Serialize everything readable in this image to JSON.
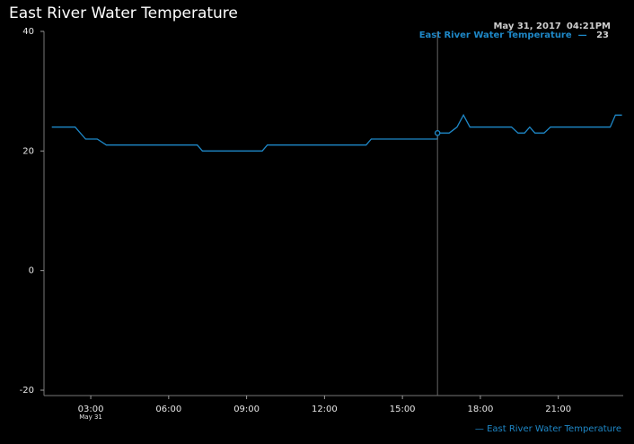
{
  "chart_data": {
    "type": "line",
    "title": "East River Water Temperature",
    "xlabel": "",
    "ylabel": "",
    "ylim": [
      -20,
      40
    ],
    "y_ticks": [
      -20,
      0,
      20,
      40
    ],
    "x_range_hours": [
      1.2,
      23.5
    ],
    "x_ticks": [
      {
        "hour": 3,
        "label": "03:00",
        "sublabel": "May 31"
      },
      {
        "hour": 6,
        "label": "06:00",
        "sublabel": ""
      },
      {
        "hour": 9,
        "label": "09:00",
        "sublabel": ""
      },
      {
        "hour": 12,
        "label": "12:00",
        "sublabel": ""
      },
      {
        "hour": 15,
        "label": "15:00",
        "sublabel": ""
      },
      {
        "hour": 18,
        "label": "18:00",
        "sublabel": ""
      },
      {
        "hour": 21,
        "label": "21:00",
        "sublabel": ""
      }
    ],
    "grid": false,
    "legend_position": "bottom-right",
    "series": [
      {
        "name": "East River Water Temperature",
        "color": "#1e88c8",
        "x": [
          1.5,
          2.4,
          2.8,
          3.25,
          3.6,
          14.5,
          16.35,
          16.8,
          17.1,
          17.35,
          17.6,
          18.0,
          19.2,
          19.45,
          19.7,
          19.9,
          20.1,
          20.45,
          20.7,
          23.0,
          23.2,
          23.45
        ],
        "y": [
          24,
          24,
          22,
          22,
          21,
          22,
          23,
          23,
          24,
          26,
          24,
          24,
          24,
          23,
          23,
          24,
          23,
          23,
          24,
          24,
          26,
          26
        ]
      }
    ],
    "segments_note_free": true,
    "tooltip": {
      "date": "May 31, 2017",
      "time": "04:21PM",
      "series_name": "East River Water Temperature",
      "dash": "—",
      "value": "23",
      "hour": 16.35,
      "y": 23
    },
    "legend_label": "— East River Water Temperature"
  }
}
